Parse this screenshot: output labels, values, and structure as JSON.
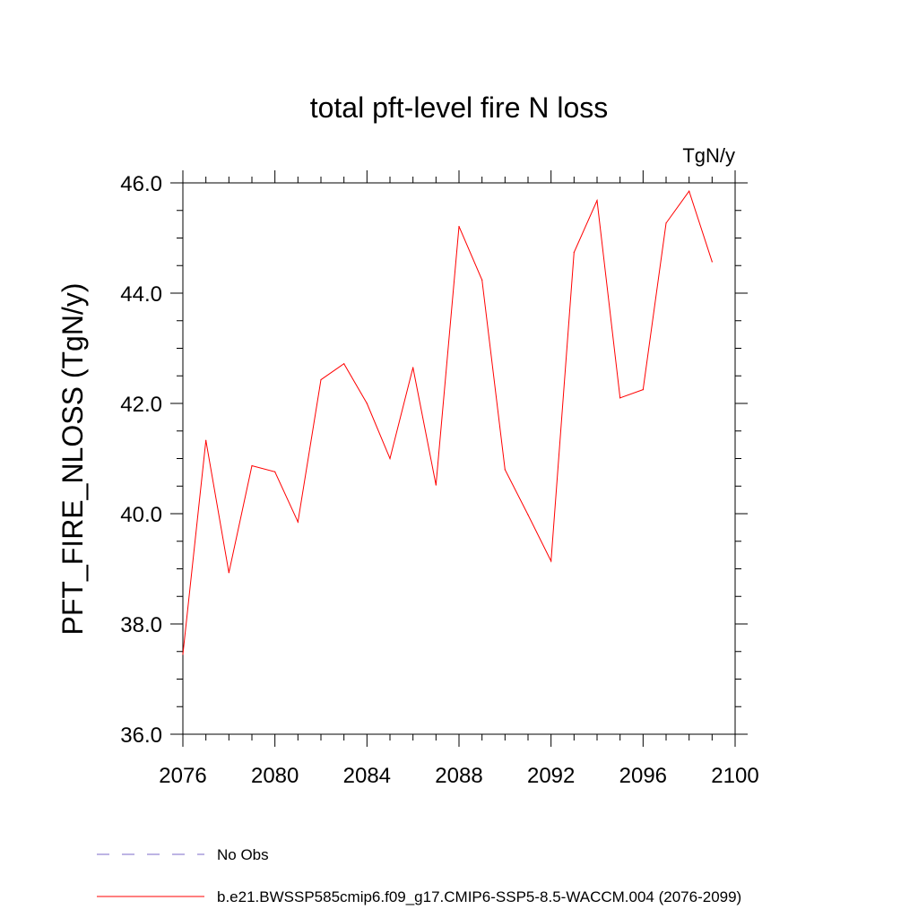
{
  "chart_data": {
    "type": "line",
    "title": "total pft-level fire N loss",
    "units_label": "TgN/y",
    "xlabel": "",
    "ylabel": "PFT_FIRE_NLOSS  (TgN/y)",
    "xlim": [
      2076,
      2100
    ],
    "ylim": [
      36.0,
      46.0
    ],
    "x_ticks": [
      2076,
      2080,
      2084,
      2088,
      2092,
      2096,
      2100
    ],
    "x_tick_labels": [
      "2076",
      "2080",
      "2084",
      "2088",
      "2092",
      "2096",
      "2100"
    ],
    "y_ticks": [
      36.0,
      38.0,
      40.0,
      42.0,
      44.0,
      46.0
    ],
    "y_tick_labels": [
      "36.0",
      "38.0",
      "40.0",
      "42.0",
      "44.0",
      "46.0"
    ],
    "x": [
      2076,
      2077,
      2078,
      2079,
      2080,
      2081,
      2082,
      2083,
      2084,
      2085,
      2086,
      2087,
      2088,
      2089,
      2090,
      2091,
      2092,
      2093,
      2094,
      2095,
      2096,
      2097,
      2098,
      2099
    ],
    "series": [
      {
        "name": "b.e21.BWSSP585cmip6.f09_g17.CMIP6-SSP5-8.5-WACCM.004 (2076-2099)",
        "color": "#ff0000",
        "values": [
          37.45,
          41.33,
          38.93,
          40.87,
          40.76,
          39.85,
          42.43,
          42.72,
          42.0,
          41.0,
          42.65,
          40.52,
          45.21,
          44.24,
          40.8,
          39.98,
          39.14,
          44.74,
          45.68,
          42.1,
          42.25,
          45.27,
          45.85,
          44.57
        ]
      }
    ],
    "legend": {
      "placement": "bottom",
      "entries": [
        {
          "label": "No Obs",
          "color": "#7b68c8",
          "style": "dashed"
        },
        {
          "label": "b.e21.BWSSP585cmip6.f09_g17.CMIP6-SSP5-8.5-WACCM.004 (2076-2099)",
          "color": "#ff0000",
          "style": "solid"
        }
      ]
    },
    "grid": false
  }
}
